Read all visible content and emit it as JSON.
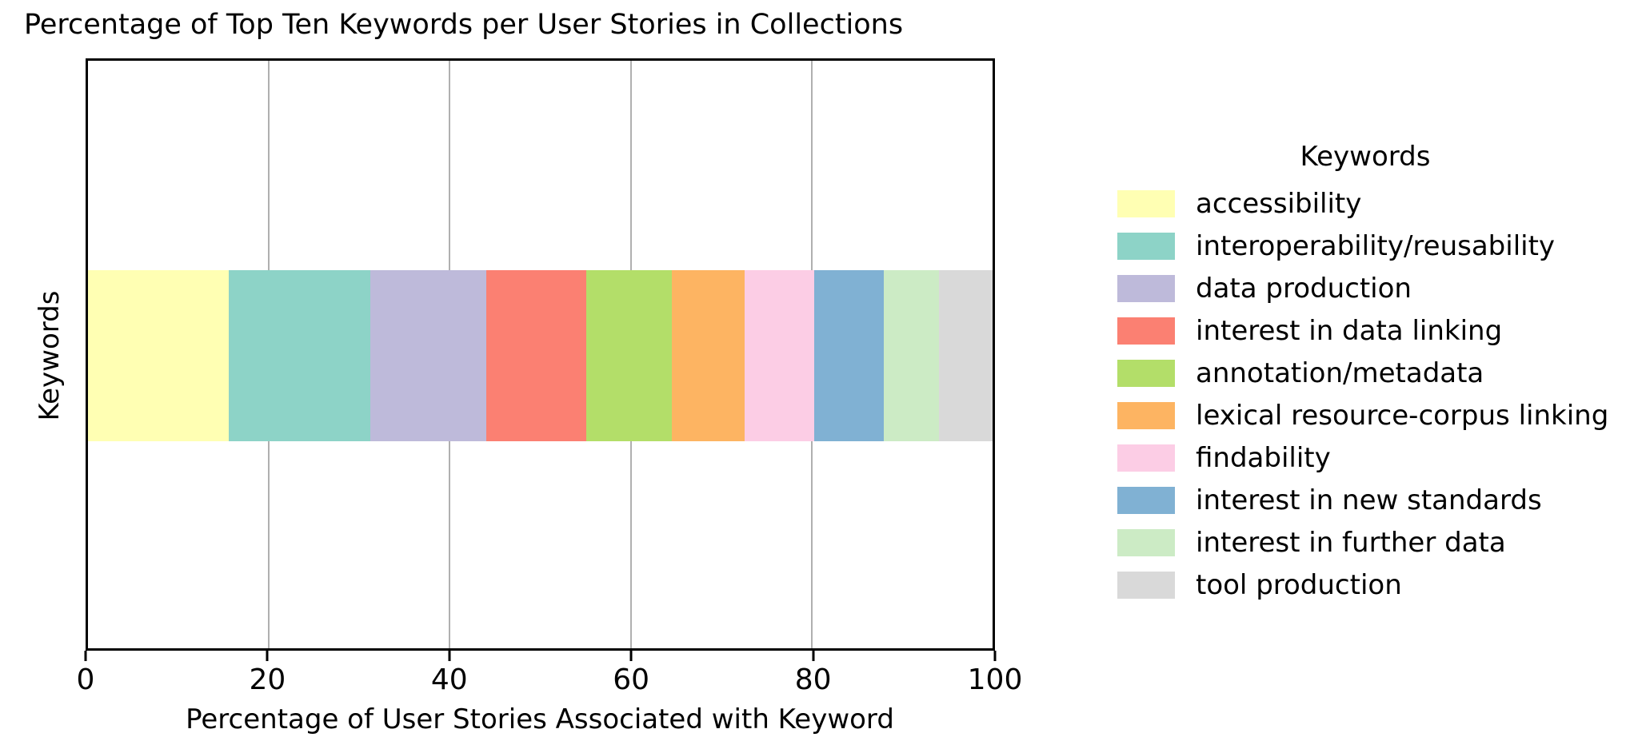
{
  "title": "Percentage of Top Ten Keywords per User Stories in Collections",
  "axes": {
    "xlabel": "Percentage of User Stories Associated with Keyword",
    "ylabel": "Keywords",
    "xticks": [
      0,
      20,
      40,
      60,
      80,
      100
    ],
    "grid_color": "#b0b0b0",
    "spine_color": "#000000"
  },
  "legend": {
    "title": "Keywords",
    "position": "right"
  },
  "chart_data": {
    "type": "bar",
    "orientation": "horizontal-stacked",
    "categories": [
      "Keywords"
    ],
    "title": "Percentage of Top Ten Keywords per User Stories in Collections",
    "xlabel": "Percentage of User Stories Associated with Keyword",
    "ylabel": "Keywords",
    "xlim": [
      0,
      100
    ],
    "grid": true,
    "legend_position": "right",
    "series": [
      {
        "name": "accessibility",
        "values": [
          15.6
        ],
        "color": "#ffffb3"
      },
      {
        "name": "interoperability/reusability",
        "values": [
          15.6
        ],
        "color": "#8dd3c7"
      },
      {
        "name": "data production",
        "values": [
          12.9
        ],
        "color": "#bebada"
      },
      {
        "name": "interest in data linking",
        "values": [
          11.0
        ],
        "color": "#fb8072"
      },
      {
        "name": "annotation/metadata",
        "values": [
          9.5
        ],
        "color": "#b3de69"
      },
      {
        "name": "lexical resource-corpus linking",
        "values": [
          8.1
        ],
        "color": "#fdb462"
      },
      {
        "name": "findability",
        "values": [
          7.7
        ],
        "color": "#fccde5"
      },
      {
        "name": "interest in new standards",
        "values": [
          7.7
        ],
        "color": "#80b1d3"
      },
      {
        "name": "interest in further data",
        "values": [
          6.1
        ],
        "color": "#ccebc5"
      },
      {
        "name": "tool production",
        "values": [
          5.9
        ],
        "color": "#d9d9d9"
      }
    ]
  }
}
